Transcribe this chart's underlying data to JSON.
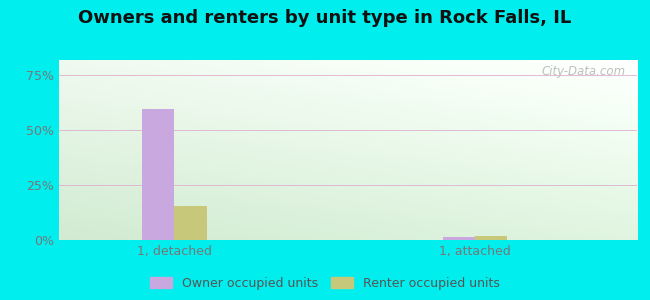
{
  "title": "Owners and renters by unit type in Rock Falls, IL",
  "categories": [
    "1, detached",
    "1, attached"
  ],
  "owner_values": [
    0.595,
    0.013
  ],
  "renter_values": [
    0.155,
    0.018
  ],
  "owner_color": "#c9a8e0",
  "renter_color": "#c8c87a",
  "background_outer": "#00eeee",
  "background_inner_tl": "#eaf5ea",
  "background_inner_tr": "#f0f8f0",
  "background_inner_bl": "#cce8cc",
  "background_inner_br": "#ddf0dd",
  "yticks": [
    0.0,
    0.25,
    0.5,
    0.75
  ],
  "ytick_labels": [
    "0%",
    "25%",
    "50%",
    "75%"
  ],
  "ylim": [
    0,
    0.82
  ],
  "legend_labels": [
    "Owner occupied units",
    "Renter occupied units"
  ],
  "watermark": "City-Data.com",
  "bar_width": 0.28,
  "group_positions": [
    1.0,
    3.6
  ],
  "xlim": [
    0.0,
    5.0
  ],
  "title_fontsize": 13,
  "axis_label_fontsize": 9,
  "legend_fontsize": 9,
  "grid_color": "#ddaacc",
  "tick_color": "#777777"
}
